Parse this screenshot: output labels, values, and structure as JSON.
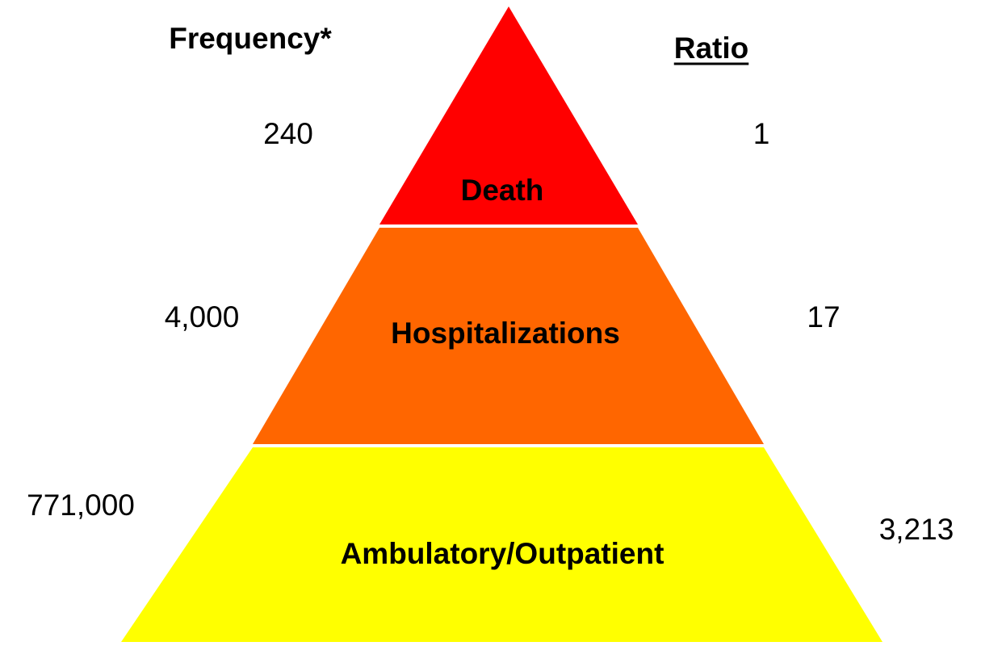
{
  "headers": {
    "frequency": "Frequency*",
    "ratio": "Ratio"
  },
  "levels": [
    {
      "name": "Death",
      "frequency": "240",
      "ratio": "1"
    },
    {
      "name": "Hospitalizations",
      "frequency": "4,000",
      "ratio": "17"
    },
    {
      "name": "Ambulatory/Outpatient",
      "frequency": "771,000",
      "ratio": "3,213"
    }
  ]
}
